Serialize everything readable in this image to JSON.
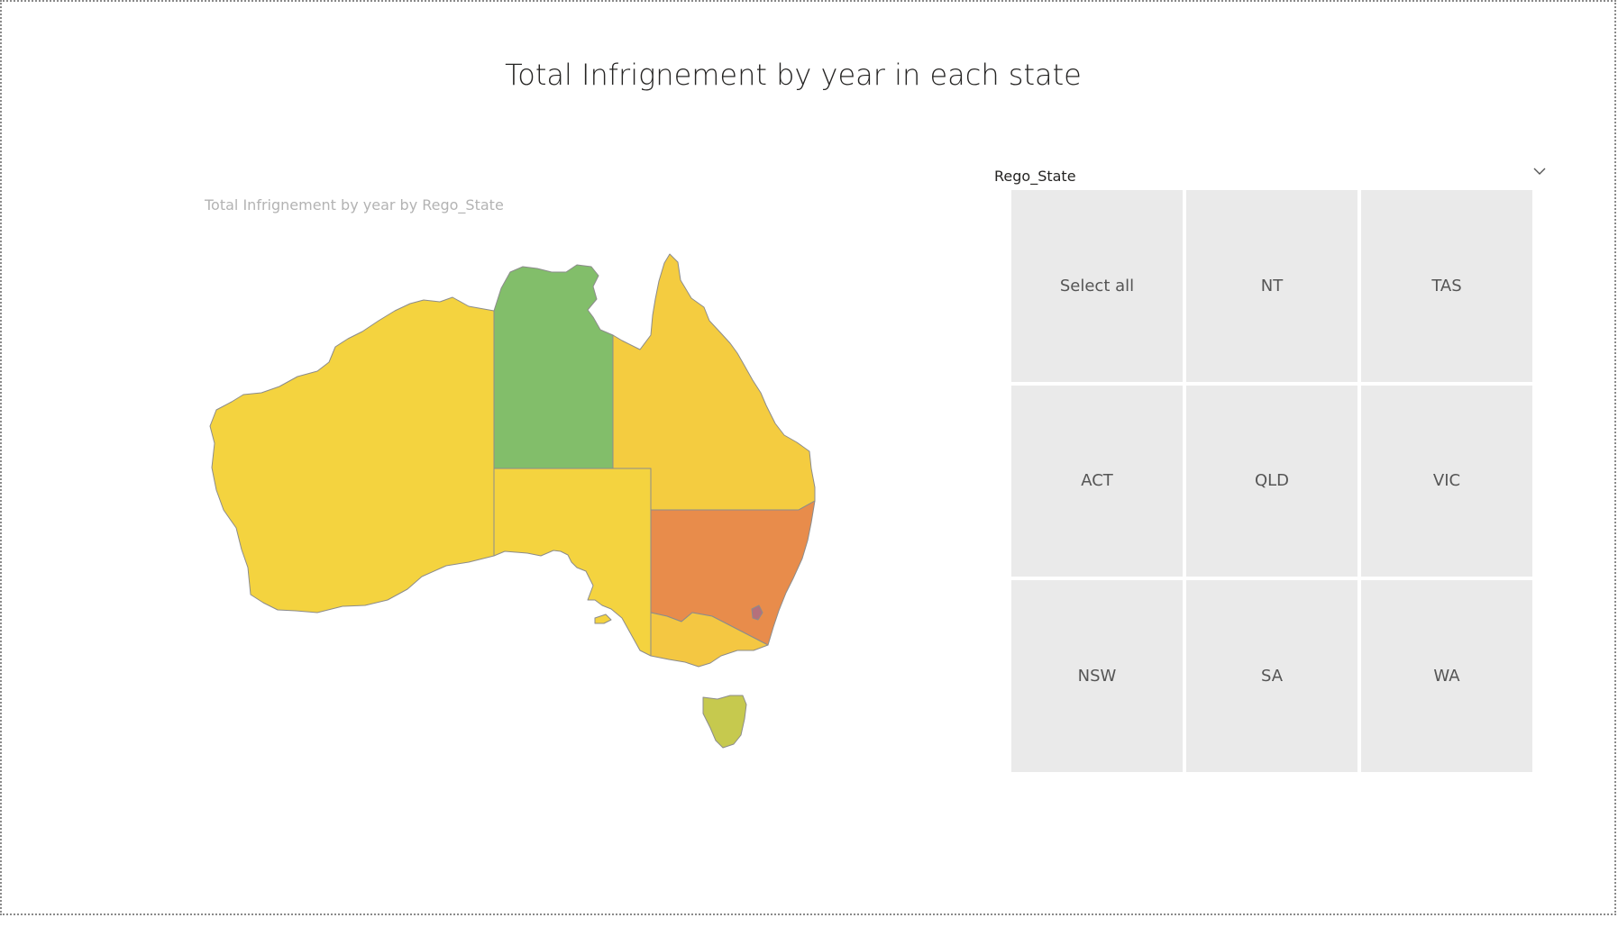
{
  "page": {
    "title": "Total Infrignement by year in each state"
  },
  "map": {
    "subtitle": "Total Infrignement by year by Rego_State",
    "state_colors": {
      "WA": "#F4D33F",
      "NT": "#82BE6A",
      "SA": "#F4D33F",
      "QLD": "#F4CC40",
      "NSW": "#E88C4B",
      "VIC": "#F4C742",
      "TAS": "#C6C94E",
      "ACT": "#B5707B"
    },
    "border_color": "#8C8C8C",
    "outline_color": "#6A9BC0"
  },
  "slicer": {
    "header": "Rego_State",
    "chevron_icon": "chevron-down-icon",
    "tiles": [
      {
        "label": "Select all"
      },
      {
        "label": "NT"
      },
      {
        "label": "TAS"
      },
      {
        "label": "ACT"
      },
      {
        "label": "QLD"
      },
      {
        "label": "VIC"
      },
      {
        "label": "NSW"
      },
      {
        "label": "SA"
      },
      {
        "label": "WA"
      }
    ]
  }
}
